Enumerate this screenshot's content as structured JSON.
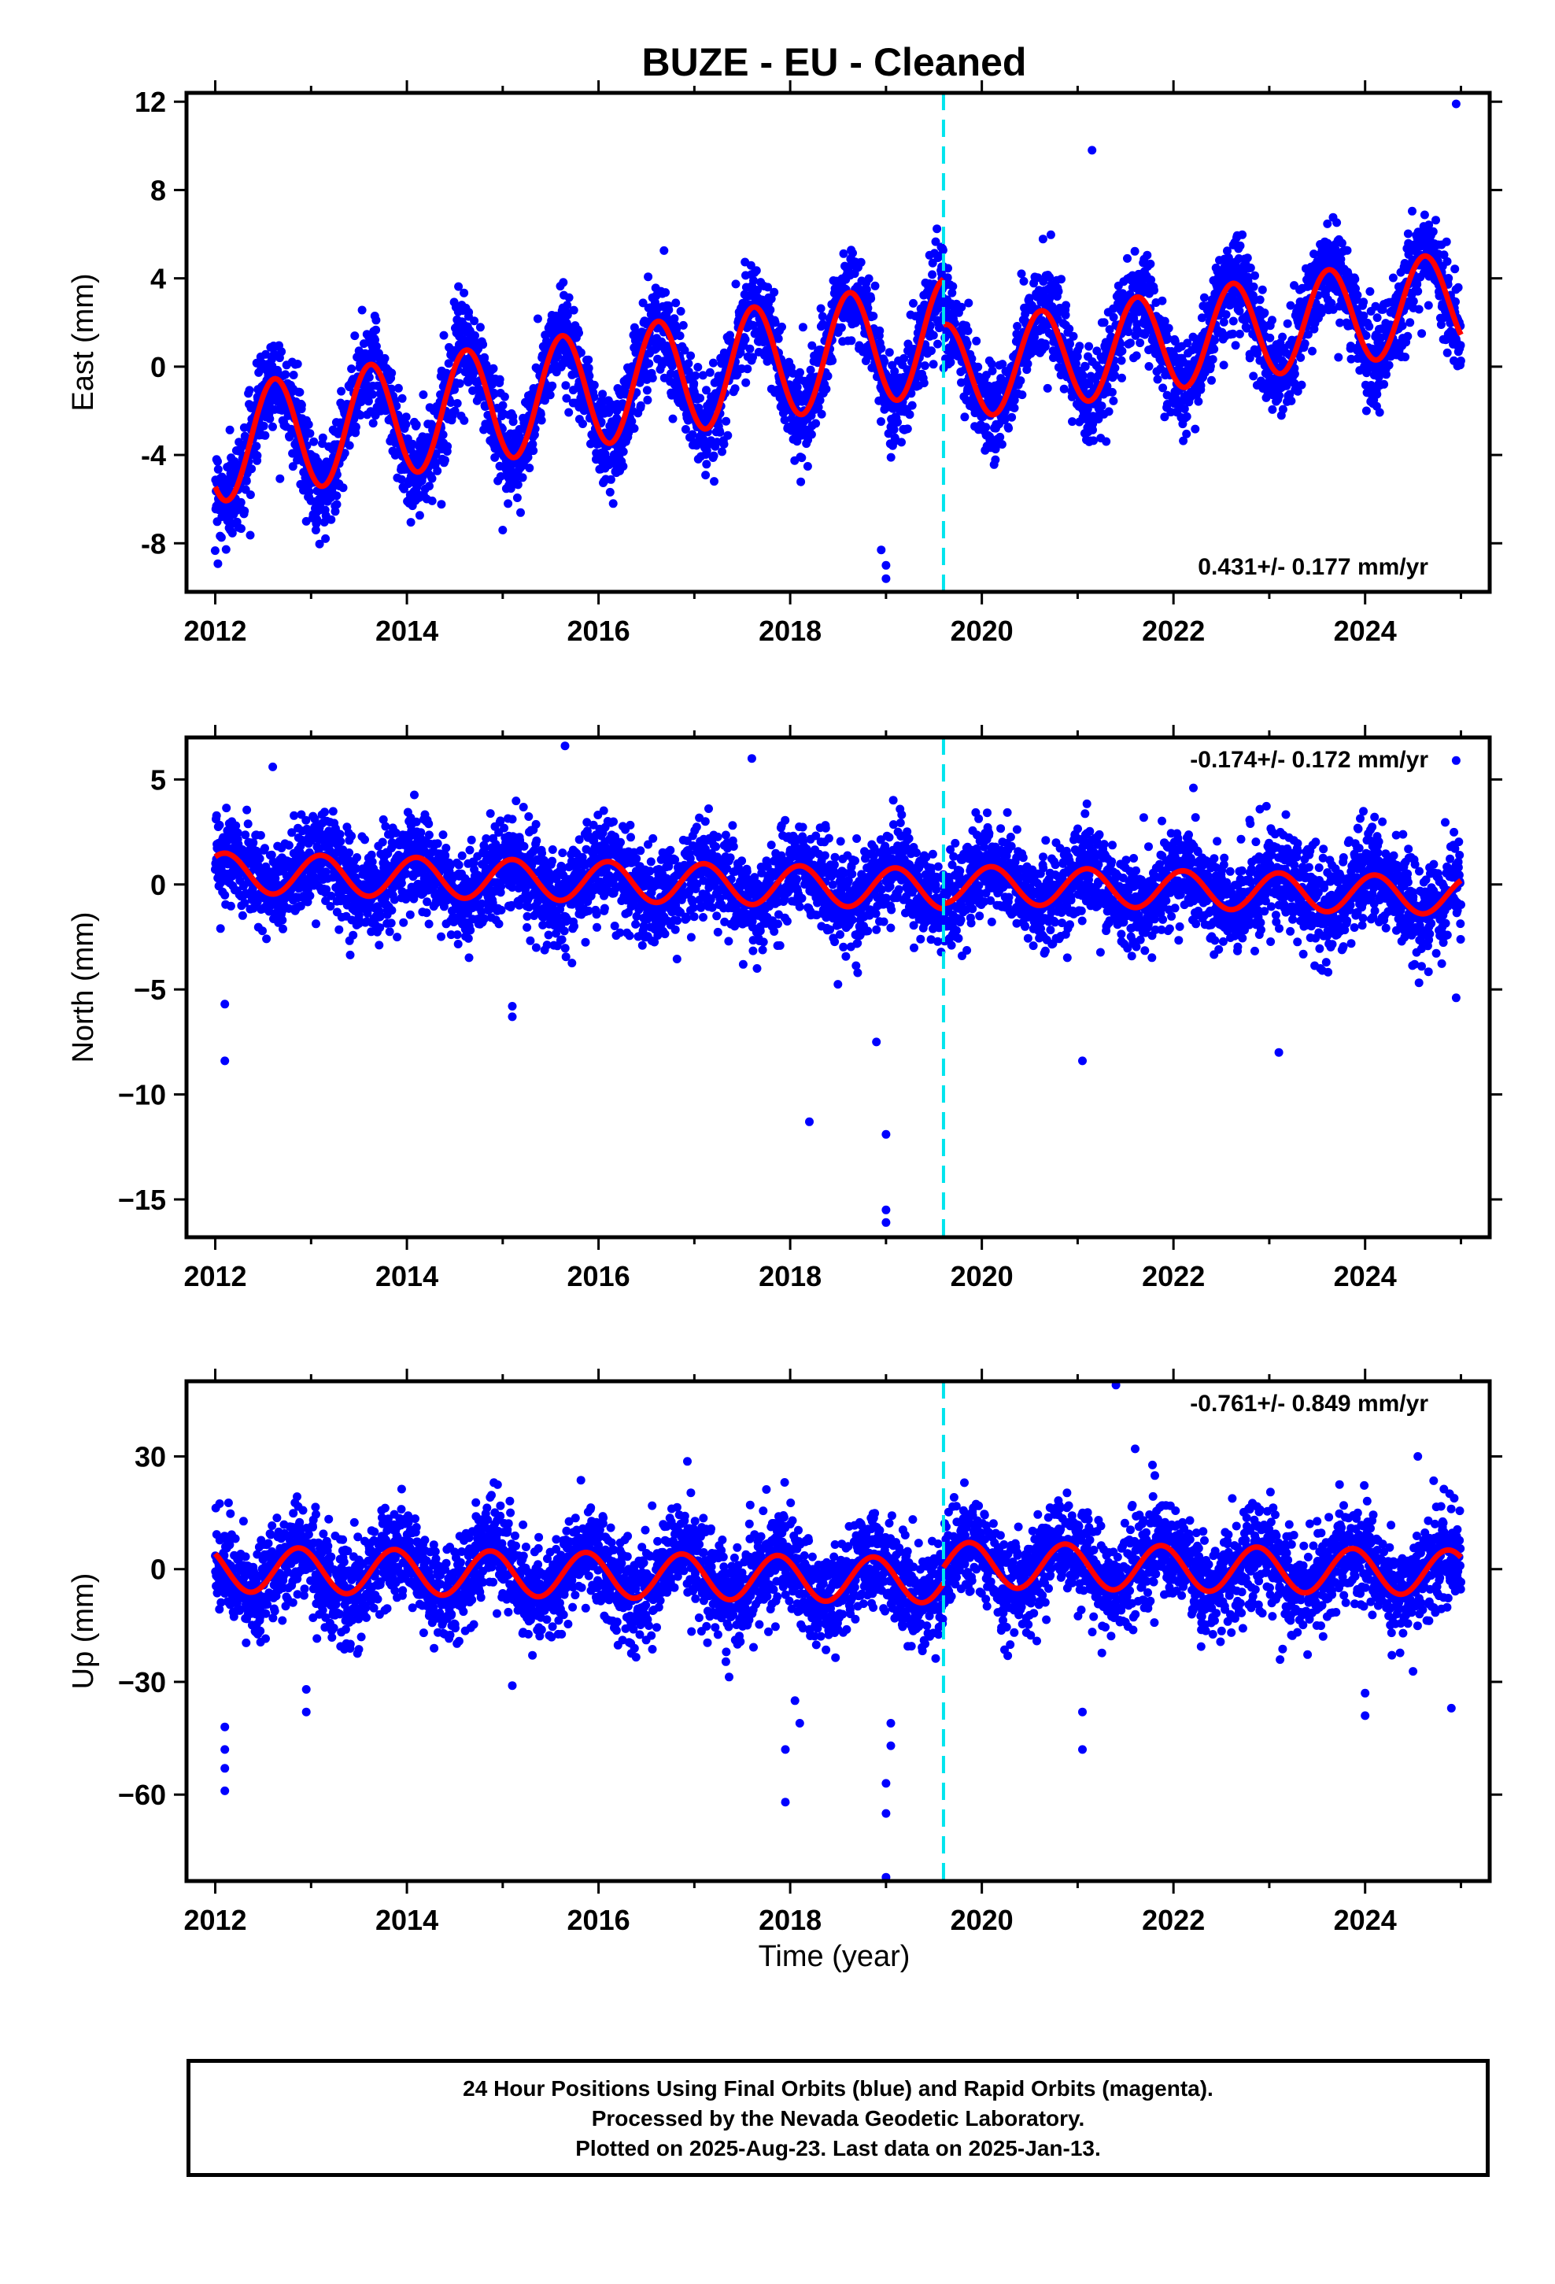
{
  "chart_data": {
    "type": "scatter",
    "title": "BUZE  - EU - Cleaned",
    "xlabel": "Time (year)",
    "colors": {
      "points": "#0000ff",
      "model": "#ff0000",
      "event_line": "#00e5ee"
    },
    "event_year": 2019.6,
    "x_tick_labels": [
      "2012",
      "2014",
      "2016",
      "2018",
      "2020",
      "2022",
      "2024"
    ],
    "panels": [
      {
        "name": "East",
        "ylabel": "East (mm)",
        "xlim": [
          2011.7,
          2025.3
        ],
        "ylim": [
          -10.2,
          12.4
        ],
        "y_tick_labels": [
          "12",
          "8",
          "4",
          "0",
          "-4",
          "-8"
        ],
        "rate": "0.431+/- 0.177 mm/yr",
        "rate_position": "bottom-right",
        "model": {
          "pre": {
            "x_start": 2012.0,
            "x_end": 2019.6,
            "offset": -3.55,
            "trend": 0.65,
            "amplitude": 2.6,
            "phase_year": 0.37
          },
          "post": {
            "x_start": 2019.6,
            "x_end": 2025.0,
            "offset": -0.3,
            "trend": 0.62,
            "amplitude": 2.2,
            "phase_year": 0.37
          }
        },
        "points": {
          "x_start": 2012.0,
          "x_end": 2025.0,
          "count": 4600,
          "noise_sd": 1.05
        },
        "outliers": [
          [
            2019.0,
            -9.6
          ],
          [
            2019.0,
            -9.0
          ],
          [
            2018.95,
            -8.3
          ],
          [
            2013.05,
            -7.4
          ],
          [
            2015.0,
            -7.4
          ],
          [
            2024.95,
            11.9
          ],
          [
            2021.15,
            9.8
          ]
        ]
      },
      {
        "name": "North",
        "ylabel": "North (mm)",
        "xlim": [
          2011.7,
          2025.3
        ],
        "ylim": [
          -16.8,
          7.0
        ],
        "y_tick_labels": [
          "5",
          "0",
          "−5",
          "−10",
          "−15"
        ],
        "rate": "-0.174+/- 0.172 mm/yr",
        "rate_position": "top-right",
        "model": {
          "pre": {
            "x_start": 2012.0,
            "x_end": 2019.6,
            "offset": 0.55,
            "trend": -0.1,
            "amplitude": 0.95,
            "phase_year": 0.85
          },
          "post": {
            "x_start": 2019.6,
            "x_end": 2025.0,
            "offset": 0.0,
            "trend": -0.1,
            "amplitude": 0.9,
            "phase_year": 0.85
          }
        },
        "points": {
          "x_start": 2012.0,
          "x_end": 2025.0,
          "count": 4600,
          "noise_sd": 1.1
        },
        "outliers": [
          [
            2012.1,
            -8.4
          ],
          [
            2012.1,
            -5.7
          ],
          [
            2015.1,
            -6.3
          ],
          [
            2015.1,
            -5.8
          ],
          [
            2018.2,
            -11.3
          ],
          [
            2019.0,
            -11.9
          ],
          [
            2019.0,
            -15.5
          ],
          [
            2019.0,
            -16.1
          ],
          [
            2018.9,
            -7.5
          ],
          [
            2021.05,
            -8.4
          ],
          [
            2023.1,
            -8.0
          ],
          [
            2024.95,
            -5.4
          ],
          [
            2015.65,
            6.6
          ],
          [
            2024.95,
            5.9
          ],
          [
            2012.6,
            5.6
          ],
          [
            2017.6,
            6.0
          ]
        ]
      },
      {
        "name": "Up",
        "ylabel": "Up (mm)",
        "xlim": [
          2011.7,
          2025.3
        ],
        "ylim": [
          -83.0,
          50.0
        ],
        "y_tick_labels": [
          "30",
          "0",
          "−30",
          "−60"
        ],
        "rate": "-0.761+/- 0.849 mm/yr",
        "rate_position": "top-right",
        "model": {
          "pre": {
            "x_start": 2012.0,
            "x_end": 2019.6,
            "offset": 0.0,
            "trend": -0.4,
            "amplitude": 6.0,
            "phase_year": 0.62
          },
          "post": {
            "x_start": 2019.6,
            "x_end": 2025.0,
            "offset": 1.2,
            "trend": -0.4,
            "amplitude": 6.0,
            "phase_year": 0.62
          }
        },
        "points": {
          "x_start": 2012.0,
          "x_end": 2025.0,
          "count": 4600,
          "noise_sd": 6.5
        },
        "outliers": [
          [
            2012.1,
            -42
          ],
          [
            2012.1,
            -48
          ],
          [
            2012.1,
            -53
          ],
          [
            2012.1,
            -59
          ],
          [
            2012.95,
            -32
          ],
          [
            2012.95,
            -38
          ],
          [
            2015.1,
            -31
          ],
          [
            2017.95,
            -48
          ],
          [
            2017.95,
            -62
          ],
          [
            2018.05,
            -35
          ],
          [
            2018.1,
            -41
          ],
          [
            2019.0,
            -57
          ],
          [
            2019.0,
            -65
          ],
          [
            2019.0,
            -82
          ],
          [
            2019.05,
            -47
          ],
          [
            2019.05,
            -41
          ],
          [
            2021.05,
            -38
          ],
          [
            2021.05,
            -48
          ],
          [
            2024.0,
            -33
          ],
          [
            2024.0,
            -39
          ],
          [
            2024.9,
            -37
          ],
          [
            2021.4,
            49
          ],
          [
            2021.6,
            32
          ],
          [
            2024.55,
            30
          ]
        ]
      }
    ]
  },
  "caption": {
    "line1": "24 Hour Positions Using Final Orbits (blue) and Rapid Orbits (magenta).",
    "line2": "Processed by the Nevada Geodetic Laboratory.",
    "line3": "Plotted on 2025-Aug-23. Last data on 2025-Jan-13."
  }
}
